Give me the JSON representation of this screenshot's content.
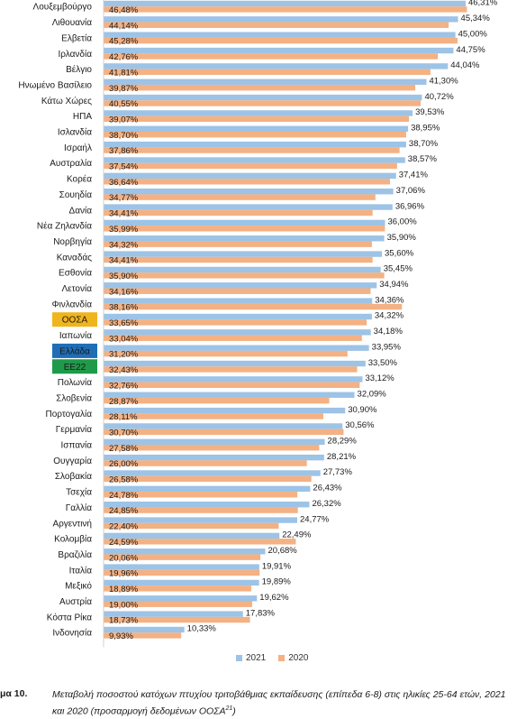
{
  "chart_data": {
    "type": "bar",
    "orientation": "horizontal",
    "categories": [
      "Λουξεμβούργο",
      "Λιθουανία",
      "Ελβετία",
      "Ιρλανδία",
      "Βέλγιο",
      "Ηνωμένο Βασίλειο",
      "Κάτω Χώρες",
      "ΗΠΑ",
      "Ισλανδία",
      "Ισραήλ",
      "Αυστραλία",
      "Κορέα",
      "Σουηδία",
      "Δανία",
      "Νέα Ζηλανδία",
      "Νορβηγία",
      "Καναδάς",
      "Εσθονία",
      "Λετονία",
      "Φινλανδία",
      "ΟΟΣΑ",
      "Ιαπωνία",
      "Ελλάδα",
      "ΕΕ22",
      "Πολωνία",
      "Σλοβενία",
      "Πορτογαλία",
      "Γερμανία",
      "Ισπανία",
      "Ουγγαρία",
      "Σλοβακία",
      "Τσεχία",
      "Γαλλία",
      "Αργεντινή",
      "Κολομβία",
      "Βραζιλία",
      "Ιταλία",
      "Μεξικό",
      "Αυστρία",
      "Κόστα Ρίκα",
      "Ινδονησία"
    ],
    "series": [
      {
        "name": "2021",
        "color": "#9dc3e6",
        "values": [
          46.31,
          45.34,
          45.0,
          44.75,
          44.04,
          41.3,
          40.72,
          39.53,
          38.95,
          38.7,
          38.57,
          37.41,
          37.06,
          36.96,
          36.0,
          35.9,
          35.6,
          35.45,
          34.94,
          34.36,
          34.32,
          34.18,
          33.95,
          33.5,
          33.12,
          32.09,
          30.9,
          30.56,
          28.29,
          28.21,
          27.73,
          26.43,
          26.32,
          24.77,
          22.49,
          20.68,
          19.91,
          19.89,
          19.62,
          17.83,
          10.33
        ],
        "labels": [
          "46,31%",
          "45,34%",
          "45,00%",
          "44,75%",
          "44,04%",
          "41,30%",
          "40,72%",
          "39,53%",
          "38,95%",
          "38,70%",
          "38,57%",
          "37,41%",
          "37,06%",
          "36,96%",
          "36,00%",
          "35,90%",
          "35,60%",
          "35,45%",
          "34,94%",
          "34,36%",
          "34,32%",
          "34,18%",
          "33,95%",
          "33,50%",
          "33,12%",
          "32,09%",
          "30,90%",
          "30,56%",
          "28,29%",
          "28,21%",
          "27,73%",
          "26,43%",
          "26,32%",
          "24,77%",
          "22,49%",
          "20,68%",
          "19,91%",
          "19,89%",
          "19,62%",
          "17,83%",
          "10,33%"
        ]
      },
      {
        "name": "2020",
        "color": "#f4b183",
        "values": [
          46.48,
          44.14,
          45.28,
          42.76,
          41.81,
          39.87,
          40.55,
          39.07,
          38.7,
          37.86,
          37.54,
          36.64,
          34.77,
          34.41,
          35.99,
          34.32,
          34.41,
          35.9,
          34.16,
          38.16,
          33.65,
          33.04,
          31.2,
          32.43,
          32.76,
          28.87,
          28.11,
          30.7,
          27.58,
          26.0,
          26.58,
          24.78,
          24.85,
          22.4,
          24.59,
          20.06,
          19.96,
          18.89,
          19.0,
          18.73,
          9.93
        ],
        "labels": [
          "46,48%",
          "44,14%",
          "45,28%",
          "42,76%",
          "41,81%",
          "39,87%",
          "40,55%",
          "39,07%",
          "38,70%",
          "37,86%",
          "37,54%",
          "36,64%",
          "34,77%",
          "34,41%",
          "35,99%",
          "34,32%",
          "34,41%",
          "35,90%",
          "34,16%",
          "38,16%",
          "33,65%",
          "33,04%",
          "31,20%",
          "32,43%",
          "32,76%",
          "28,87%",
          "28,11%",
          "30,70%",
          "27,58%",
          "26,00%",
          "26,58%",
          "24,78%",
          "24,85%",
          "22,40%",
          "24,59%",
          "20,06%",
          "19,96%",
          "18,89%",
          "19,00%",
          "18,73%",
          "9,93%"
        ]
      }
    ],
    "highlights": [
      {
        "category": "ΟΟΣΑ",
        "bg": "#f0b41c",
        "text": "#1a1a1a"
      },
      {
        "category": "Ελλάδα",
        "bg": "#1f6db5",
        "text": "#ffffff"
      },
      {
        "category": "ΕΕ22",
        "bg": "#1f9a4a",
        "text": "#ffffff"
      }
    ],
    "legend_position": "bottom-center",
    "grid": false
  },
  "legend": {
    "label_2021": "2021",
    "label_2020": "2020"
  },
  "caption": {
    "number": "μα 10.",
    "text": "Μεταβολή ποσοστού κατόχων πτυχίου τριτοβάθμιας εκπαίδευσης (επίπεδα 6-8) στις ηλικίες 25-64 ετών, 2021 και 2020 (προσαρμογή δεδομένων ΟΟΣΑ",
    "footnote": "21",
    "closing": ")"
  }
}
